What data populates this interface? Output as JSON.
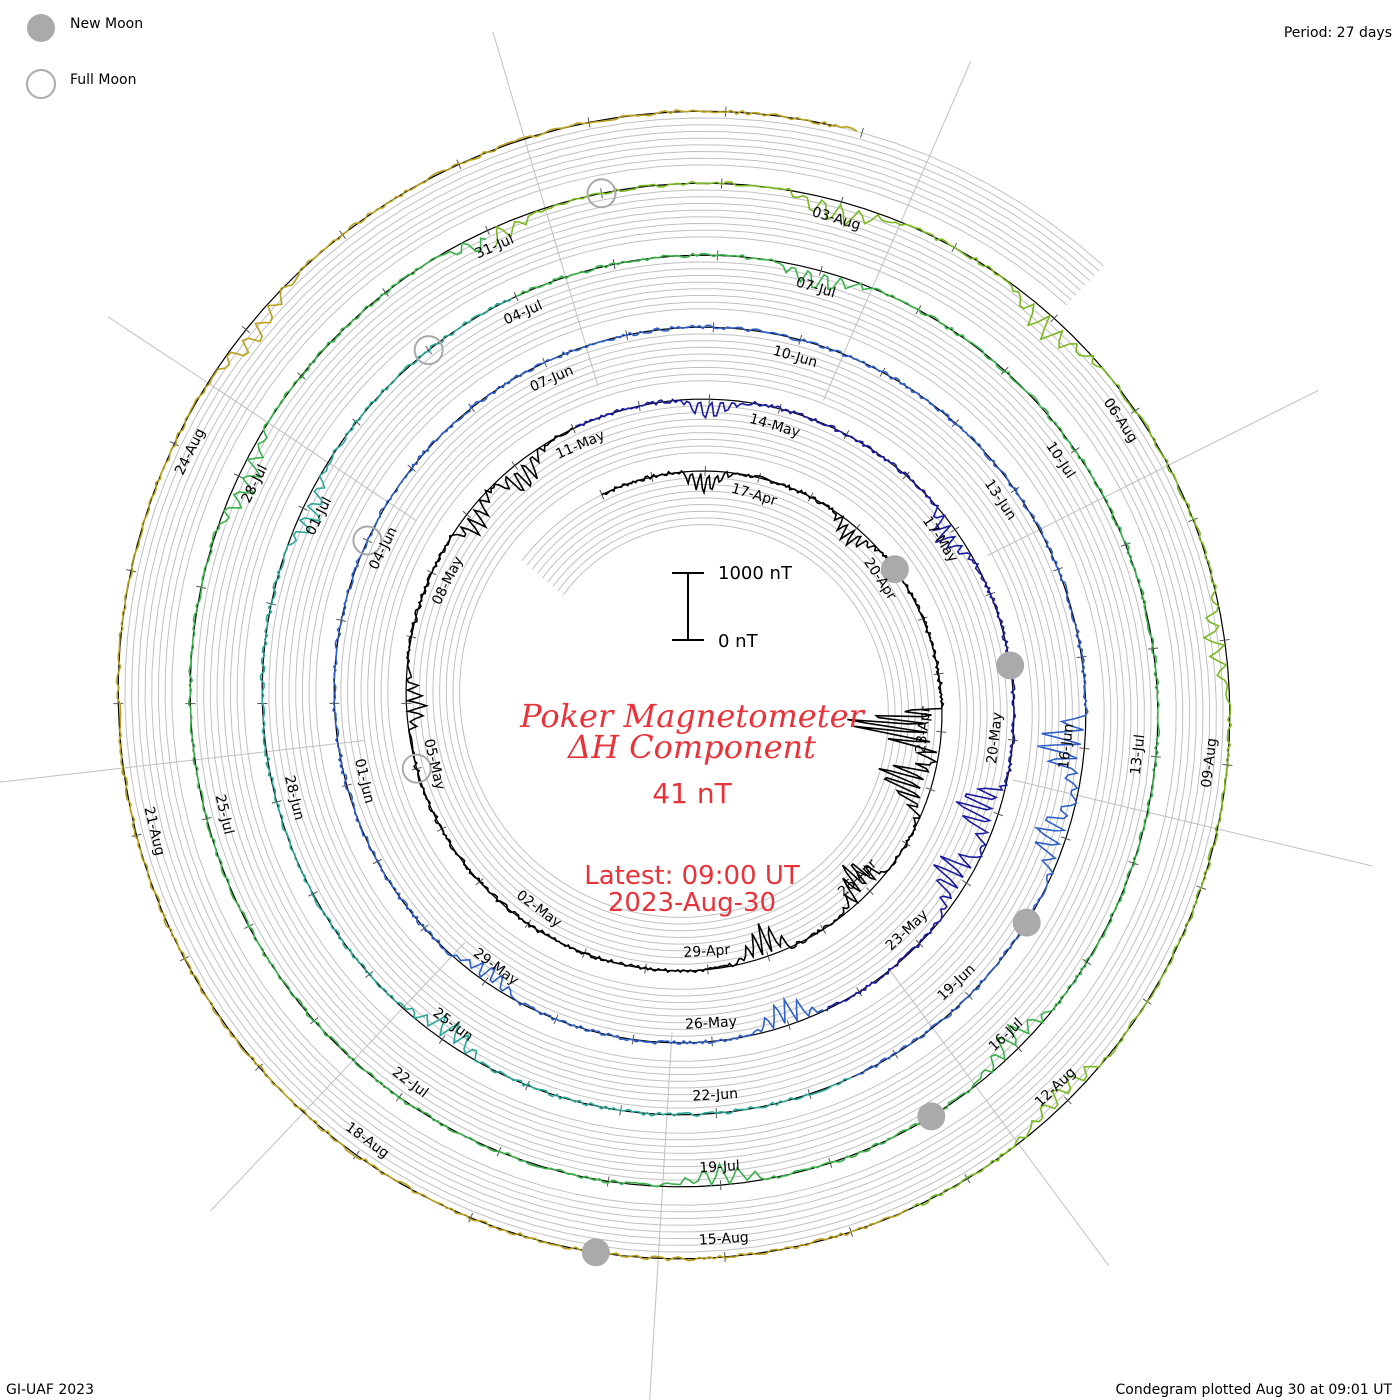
{
  "legend": {
    "new_moon_label": "New Moon",
    "full_moon_label": "Full Moon",
    "new_moon_color": "#aaaaaa",
    "full_moon_color": "#aaaaaa"
  },
  "period_label": "Period: 27 days",
  "scale_bar": {
    "top_label": "1000 nT",
    "bottom_label": "0 nT"
  },
  "title_line1": "Poker Magnetometer",
  "title_line2": "ΔH Component",
  "current_value": "41 nT",
  "latest_time": "Latest: 09:00 UT",
  "latest_date": "2023-Aug-30",
  "footer_left": "GI-UAF 2023",
  "footer_right": "Condegram plotted Aug 30 at 09:01 UT",
  "colors": {
    "title": "#e8333a",
    "grid": "#c0c0c0",
    "moon_marker": "#aaaaaa",
    "ring_colors": [
      "#000000",
      "#1a1aa0",
      "#2f5fc8",
      "#2aa898",
      "#3ab24a",
      "#7ab820",
      "#b8a01a",
      "#c86a10",
      "#b81a0a"
    ]
  },
  "chart_data": {
    "type": "line",
    "projection": "spiral condegram (27-day period)",
    "period_days": 27,
    "units": "nT",
    "series_start": "2023-Apr-14",
    "series_end": "2023-Aug-30",
    "date_labels": [
      "17-Apr",
      "20-Apr",
      "23-Apr",
      "26-Apr",
      "29-Apr",
      "02-May",
      "05-May",
      "08-May",
      "11-May",
      "14-May",
      "17-May",
      "20-May",
      "23-May",
      "26-May",
      "29-May",
      "01-Jun",
      "04-Jun",
      "07-Jun",
      "10-Jun",
      "13-Jun",
      "16-Jun",
      "19-Jun",
      "22-Jun",
      "25-Jun",
      "28-Jun",
      "01-Jul",
      "04-Jul",
      "07-Jul",
      "10-Jul",
      "13-Jul",
      "16-Jul",
      "19-Jul",
      "22-Jul",
      "25-Jul",
      "28-Jul",
      "31-Jul",
      "03-Aug",
      "06-Aug",
      "09-Aug",
      "12-Aug",
      "15-Aug",
      "18-Aug",
      "21-Aug",
      "24-Aug"
    ],
    "new_moon_dates": [
      "2023-Apr-20",
      "2023-May-19",
      "2023-Jun-18",
      "2023-Jul-17",
      "2023-Aug-16"
    ],
    "full_moon_dates": [
      "2023-May-05",
      "2023-Jun-04",
      "2023-Jul-03",
      "2023-Aug-01"
    ],
    "disturbances": [
      {
        "date": "2023-Apr-16",
        "value_nT": -350
      },
      {
        "date": "2023-Apr-19",
        "value_nT": -300
      },
      {
        "date": "2023-Apr-23",
        "value_nT": -1500
      },
      {
        "date": "2023-Apr-24",
        "value_nT": -900
      },
      {
        "date": "2023-Apr-26",
        "value_nT": -600
      },
      {
        "date": "2023-Apr-28",
        "value_nT": -500
      },
      {
        "date": "2023-May-06",
        "value_nT": -300
      },
      {
        "date": "2023-May-09",
        "value_nT": -350
      },
      {
        "date": "2023-May-10",
        "value_nT": -450
      },
      {
        "date": "2023-May-13",
        "value_nT": -300
      },
      {
        "date": "2023-May-17",
        "value_nT": -350
      },
      {
        "date": "2023-May-21",
        "value_nT": -700
      },
      {
        "date": "2023-May-22",
        "value_nT": -600
      },
      {
        "date": "2023-May-25",
        "value_nT": -400
      },
      {
        "date": "2023-May-29",
        "value_nT": -250
      },
      {
        "date": "2023-Jun-16",
        "value_nT": -700
      },
      {
        "date": "2023-Jun-17",
        "value_nT": -500
      },
      {
        "date": "2023-Jun-25",
        "value_nT": -350
      },
      {
        "date": "2023-Jul-01",
        "value_nT": -300
      },
      {
        "date": "2023-Jul-07",
        "value_nT": -300
      },
      {
        "date": "2023-Jul-16",
        "value_nT": -350
      },
      {
        "date": "2023-Jul-19",
        "value_nT": -300
      },
      {
        "date": "2023-Jul-28",
        "value_nT": -350
      },
      {
        "date": "2023-Jul-31",
        "value_nT": -300
      },
      {
        "date": "2023-Aug-03",
        "value_nT": -350
      },
      {
        "date": "2023-Aug-05",
        "value_nT": -400
      },
      {
        "date": "2023-Aug-08",
        "value_nT": -300
      },
      {
        "date": "2023-Aug-12",
        "value_nT": -300
      },
      {
        "date": "2023-Aug-25",
        "value_nT": -300
      }
    ],
    "scale_reference_nT": [
      0,
      1000
    ]
  }
}
